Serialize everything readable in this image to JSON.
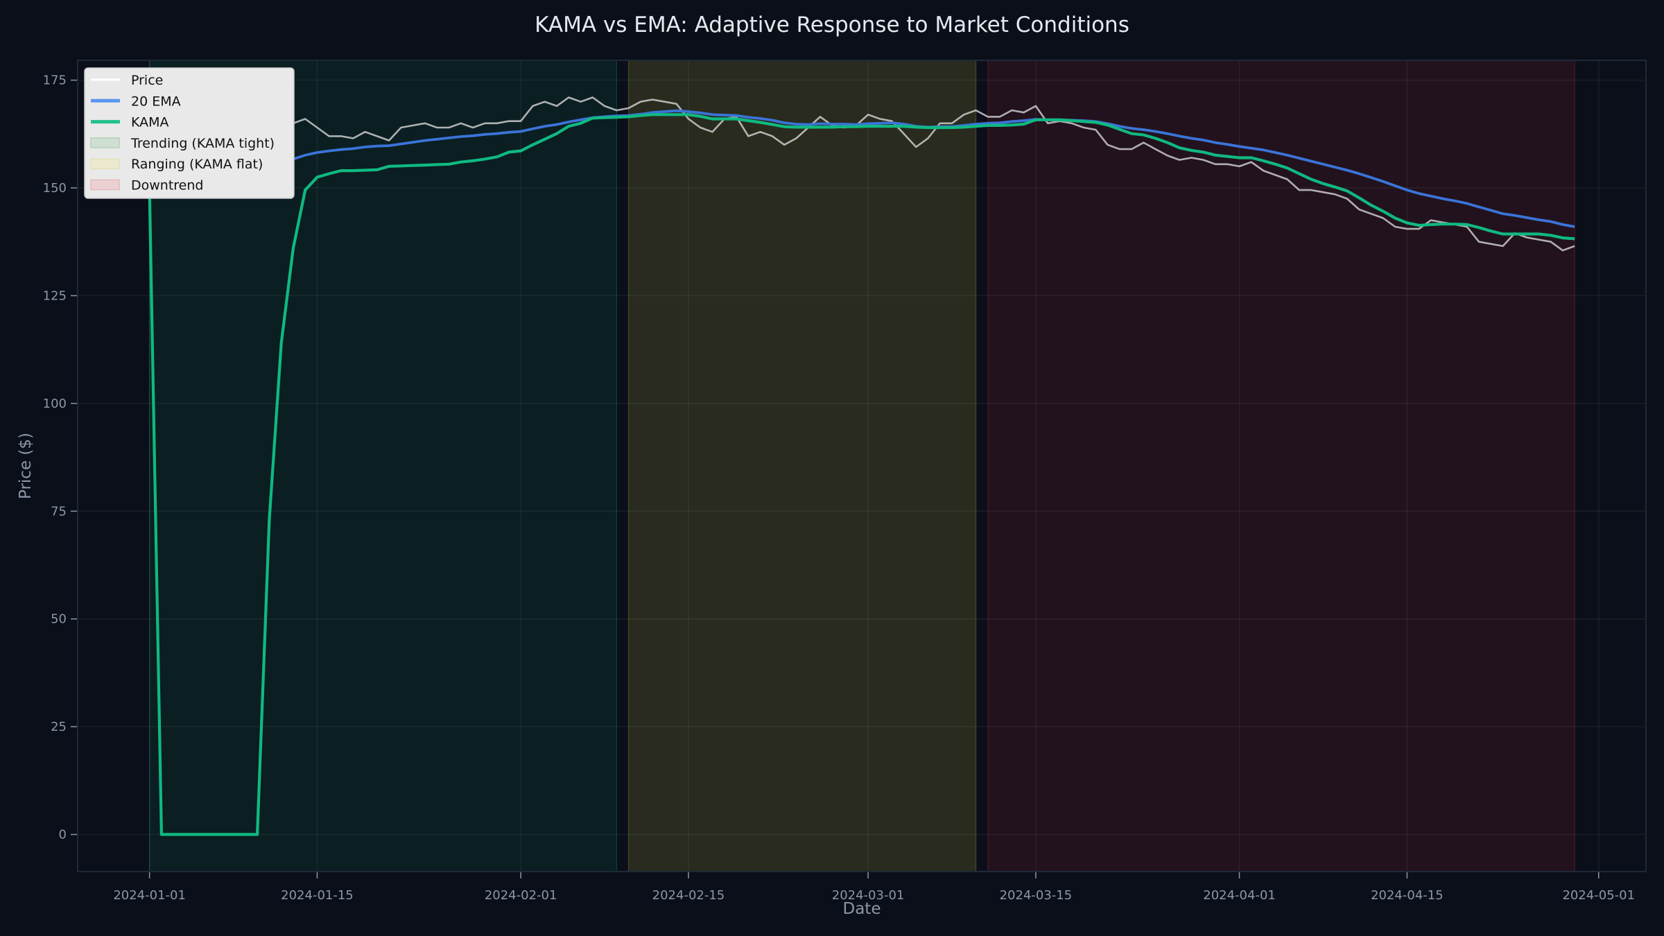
{
  "chart_data": {
    "type": "line",
    "title": "KAMA vs EMA: Adaptive Response to Market Conditions",
    "xlabel": "Date",
    "ylabel": "Price ($)",
    "x_start": "2024-01-01",
    "x_end": "2024-04-29",
    "x_frequency": "daily",
    "xlim": [
      "2023-12-26",
      "2024-05-05"
    ],
    "ylim": [
      -8.6,
      179.6
    ],
    "x_ticks": [
      "2024-01-01",
      "2024-01-15",
      "2024-02-01",
      "2024-02-15",
      "2024-03-01",
      "2024-03-15",
      "2024-04-01",
      "2024-04-15",
      "2024-05-01"
    ],
    "y_ticks": [
      0,
      25,
      50,
      75,
      100,
      125,
      150,
      175
    ],
    "grid": true,
    "legend_position": "top-left",
    "colors": {
      "background": "#0b0f19",
      "price": "#d6d6d6",
      "ema": "#3b74d8",
      "kama": "#10b981",
      "trending": "#10b981",
      "ranging": "#b8b53a",
      "downtrend": "#c0283a",
      "text": "#8b97a8",
      "title": "#e6e9ee"
    },
    "spans": [
      {
        "name": "Trending (KAMA tight)",
        "start": "2024-01-01",
        "end": "2024-02-09",
        "color": "#10b981"
      },
      {
        "name": "Ranging (KAMA flat)",
        "start": "2024-02-10",
        "end": "2024-03-10",
        "color": "#b8b53a"
      },
      {
        "name": "Downtrend",
        "start": "2024-03-11",
        "end": "2024-04-29",
        "color": "#c0283a"
      }
    ],
    "series": [
      {
        "name": "Price",
        "values": [
          150,
          151,
          152,
          153,
          153,
          154,
          155,
          156,
          163,
          163,
          165,
          165,
          165,
          166,
          164,
          162,
          162,
          161.5,
          163,
          162,
          161,
          164,
          164.5,
          165,
          164,
          164,
          165,
          164,
          165,
          165,
          165.5,
          165.5,
          169,
          170,
          169,
          171,
          170,
          171,
          169,
          168,
          168.5,
          170,
          170.5,
          170,
          169.5,
          166,
          164,
          163,
          166,
          166.5,
          162,
          163,
          162,
          160,
          161.5,
          164,
          166.5,
          164.5,
          164,
          164.5,
          167,
          166,
          165.5,
          162.5,
          159.5,
          161.5,
          165,
          165,
          167,
          168,
          166.5,
          166.5,
          168,
          167.5,
          169,
          165,
          165.5,
          165,
          164,
          163.5,
          160,
          159,
          159,
          160.5,
          159,
          157.5,
          156.5,
          157,
          156.5,
          155.5,
          155.5,
          155,
          156,
          154,
          153,
          152,
          149.5,
          149.5,
          149,
          148.5,
          147.5,
          145,
          144,
          143,
          141,
          140.5,
          140.5,
          142.5,
          142,
          141.5,
          141,
          137.5,
          137,
          136.5,
          139.5,
          138.5,
          138,
          137.5,
          135.5,
          136.5
        ]
      },
      {
        "name": "20 EMA",
        "values": [
          150,
          150.1,
          150.3,
          150.5,
          150.8,
          151.1,
          151.4,
          151.9,
          152.9,
          153.9,
          154.9,
          155.9,
          156.7,
          157.6,
          158.2,
          158.6,
          158.9,
          159.1,
          159.5,
          159.7,
          159.8,
          160.2,
          160.6,
          161,
          161.3,
          161.6,
          161.9,
          162.1,
          162.4,
          162.6,
          162.9,
          163.1,
          163.7,
          164.3,
          164.7,
          165.3,
          165.8,
          166.3,
          166.5,
          166.7,
          166.8,
          167.1,
          167.5,
          167.7,
          167.9,
          167.7,
          167.4,
          167,
          166.9,
          166.8,
          166.4,
          166.1,
          165.7,
          165.1,
          164.8,
          164.7,
          164.9,
          164.8,
          164.8,
          164.7,
          164.9,
          165,
          165.1,
          164.8,
          164.3,
          164.1,
          164.2,
          164.2,
          164.5,
          164.8,
          165,
          165.1,
          165.4,
          165.6,
          165.9,
          165.8,
          165.8,
          165.7,
          165.6,
          165.4,
          164.9,
          164.3,
          163.8,
          163.5,
          163.1,
          162.6,
          162,
          161.5,
          161.1,
          160.5,
          160.1,
          159.6,
          159.2,
          158.8,
          158.2,
          157.6,
          156.9,
          156.2,
          155.5,
          154.8,
          154.1,
          153.3,
          152.4,
          151.5,
          150.5,
          149.5,
          148.7,
          148.1,
          147.5,
          147,
          146.4,
          145.6,
          144.8,
          144,
          143.6,
          143.1,
          142.6,
          142.2,
          141.5,
          141
        ]
      },
      {
        "name": "KAMA",
        "values": [
          150,
          0,
          0,
          0,
          0,
          0,
          0,
          0,
          0,
          0,
          73,
          114,
          136,
          149.5,
          152.5,
          153.3,
          154,
          154,
          154.1,
          154.2,
          155,
          155.1,
          155.2,
          155.3,
          155.4,
          155.5,
          156,
          156.3,
          156.7,
          157.2,
          158.3,
          158.6,
          160,
          161.3,
          162.6,
          164.3,
          165,
          166.2,
          166.3,
          166.4,
          166.5,
          166.8,
          167,
          167,
          167,
          167,
          166.6,
          166,
          166,
          166,
          165.6,
          165.2,
          164.7,
          164.2,
          164.1,
          164.1,
          164.1,
          164.1,
          164.2,
          164.2,
          164.3,
          164.3,
          164.3,
          164.3,
          164.1,
          164,
          164,
          164,
          164.1,
          164.3,
          164.5,
          164.5,
          164.6,
          164.8,
          165.8,
          165.8,
          165.8,
          165.6,
          165.4,
          165.2,
          164.6,
          163.6,
          162.6,
          162.3,
          161.5,
          160.5,
          159.3,
          158.7,
          158.3,
          157.6,
          157.3,
          157,
          157,
          156.3,
          155.5,
          154.6,
          153.3,
          152,
          151,
          150.2,
          149.3,
          147.7,
          146,
          144.6,
          143,
          141.9,
          141.3,
          141.5,
          141.6,
          141.6,
          141.5,
          140.8,
          140,
          139.3,
          139.3,
          139.3,
          139.3,
          139,
          138.4,
          138.2
        ]
      }
    ]
  }
}
